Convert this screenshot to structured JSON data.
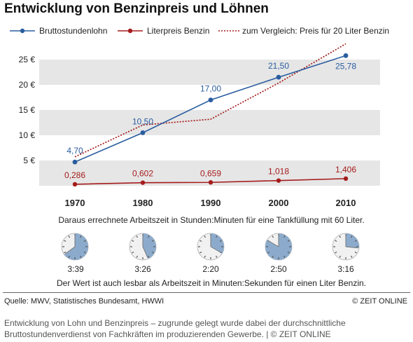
{
  "title": "Entwicklung von Benzinpreis und Löhnen",
  "chart_data": {
    "type": "line",
    "x": [
      1970,
      1980,
      1990,
      2000,
      2010
    ],
    "ylim": [
      0,
      30
    ],
    "y_ticks": [
      "5 €",
      "10 €",
      "15 €",
      "20 €",
      "25 €"
    ],
    "y_tick_values": [
      5,
      10,
      15,
      20,
      25
    ],
    "grid": "alternating horizontal bands",
    "legend_position": "top",
    "series": [
      {
        "name": "Bruttostundenlohn",
        "color": "#2a5da0",
        "style": "solid, markers",
        "values": [
          4.7,
          10.5,
          17.0,
          21.5,
          25.78
        ],
        "labels": [
          "4,70",
          "10,50",
          "17,00",
          "21,50",
          "25,78"
        ]
      },
      {
        "name": "Literpreis Benzin",
        "color": "#a51c1c",
        "style": "solid, markers",
        "values": [
          0.286,
          0.602,
          0.659,
          1.018,
          1.406
        ],
        "labels": [
          "0,286",
          "0,602",
          "0,659",
          "1,018",
          "1,406"
        ]
      },
      {
        "name": "zum Vergleich: Preis für 20 Liter Benzin",
        "color": "#a51c1c",
        "style": "dotted",
        "values": [
          5.72,
          12.04,
          13.18,
          20.36,
          28.12
        ]
      }
    ]
  },
  "note_top": "Daraus errechnete Arbeitszeit in Stunden:Minuten für eine Tankfüllung mit 60 Liter.",
  "clocks": {
    "face_color": "#f1f1f1",
    "fill_color": "#8cabcc",
    "items": [
      {
        "label": "3:39",
        "minutes": 39
      },
      {
        "label": "3:26",
        "minutes": 26
      },
      {
        "label": "2:20",
        "minutes": 20
      },
      {
        "label": "2:50",
        "minutes": 50
      },
      {
        "label": "3:16",
        "minutes": 16
      }
    ]
  },
  "note_bottom": "Der Wert ist auch lesbar als Arbeitszeit in Minuten:Sekunden für einen Liter Benzin.",
  "source": "Quelle: MWV, Statistisches Bundesamt, HWWI",
  "copyright": "© ZEIT ONLINE",
  "caption": "Entwicklung von Lohn und Benzinpreis – zugrunde gelegt wurde dabei der durchschnittliche Bruttostundenverdienst von Fachkräften im produzierenden Gewerbe.  |  © ZEIT ONLINE"
}
